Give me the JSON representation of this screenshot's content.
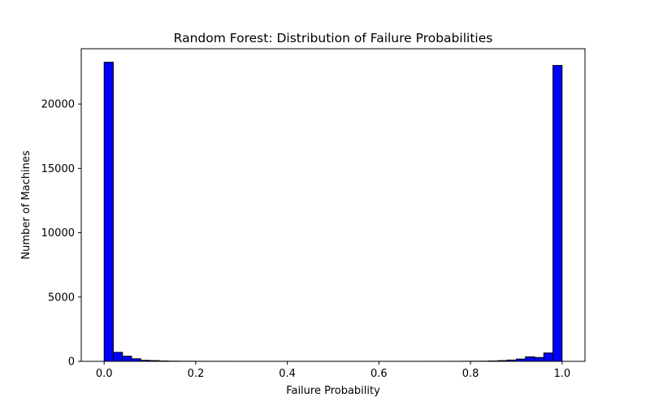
{
  "chart_data": {
    "type": "bar",
    "title": "Random Forest: Distribution of Failure Probabilities",
    "xlabel": "Failure Probability",
    "ylabel": "Number of Machines",
    "bar_color": "#0000ff",
    "edge_color": "#000000",
    "xlim": [
      -0.05,
      1.05
    ],
    "ylim": [
      0,
      24300
    ],
    "xticks": [
      0.0,
      0.2,
      0.4,
      0.6,
      0.8,
      1.0
    ],
    "xtick_labels": [
      "0.0",
      "0.2",
      "0.4",
      "0.6",
      "0.8",
      "1.0"
    ],
    "yticks": [
      0,
      5000,
      10000,
      15000,
      20000
    ],
    "ytick_labels": [
      "0",
      "5000",
      "10000",
      "15000",
      "20000"
    ],
    "bin_edges": [
      0.0,
      0.02,
      0.04,
      0.06,
      0.08,
      0.1,
      0.12,
      0.14,
      0.16,
      0.18,
      0.2,
      0.22,
      0.24,
      0.26,
      0.28,
      0.3,
      0.32,
      0.34,
      0.36,
      0.38,
      0.4,
      0.42,
      0.44,
      0.46,
      0.48,
      0.5,
      0.52,
      0.54,
      0.56,
      0.58,
      0.6,
      0.62,
      0.64,
      0.66,
      0.68,
      0.7,
      0.72,
      0.74,
      0.76,
      0.78,
      0.8,
      0.82,
      0.84,
      0.86,
      0.88,
      0.9,
      0.92,
      0.94,
      0.96,
      0.98,
      1.0
    ],
    "values": [
      23250,
      700,
      400,
      200,
      80,
      60,
      30,
      15,
      10,
      8,
      5,
      4,
      3,
      3,
      2,
      2,
      2,
      2,
      2,
      2,
      2,
      2,
      2,
      2,
      2,
      2,
      2,
      2,
      2,
      2,
      2,
      2,
      2,
      2,
      2,
      3,
      3,
      4,
      5,
      8,
      10,
      15,
      30,
      60,
      100,
      180,
      350,
      300,
      650,
      23000
    ],
    "grid": false,
    "legend": "none"
  }
}
